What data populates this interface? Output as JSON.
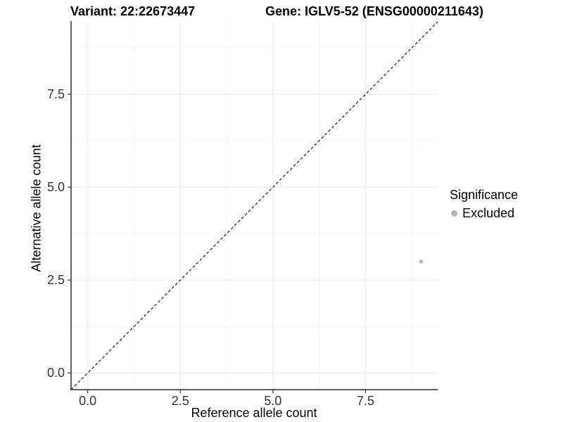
{
  "chart_data": {
    "type": "scatter",
    "title_variant": "Variant: 22:22673447",
    "title_gene": "Gene: IGLV5-52 (ENSG00000211643)",
    "xlabel": "Reference allele count",
    "ylabel": "Alternative allele count",
    "xlim": [
      -0.45,
      9.45
    ],
    "ylim": [
      -0.45,
      9.45
    ],
    "x_ticks": {
      "values": [
        0,
        2.5,
        5,
        7.5
      ],
      "labels": [
        "0.0",
        "2.5",
        "5.0",
        "7.5"
      ]
    },
    "y_ticks": {
      "values": [
        0,
        2.5,
        5,
        7.5
      ],
      "labels": [
        "0.0",
        "2.5",
        "5.0",
        "7.5"
      ]
    },
    "minor_ticks": [
      1.25,
      3.75,
      6.25,
      8.75
    ],
    "grid": true,
    "reference_line": {
      "type": "abline",
      "intercept": 0,
      "slope": 1,
      "style": "dashed"
    },
    "series": [
      {
        "name": "Excluded",
        "color": "#bdbdbd",
        "points": [
          {
            "x": 9,
            "y": 3
          }
        ]
      }
    ],
    "legend": {
      "title": "Significance",
      "position": "right",
      "entries": [
        {
          "label": "Excluded",
          "color": "#b3b3b3"
        }
      ]
    },
    "colors": {
      "background": "#ffffff",
      "major_grid": "#e7e7e7",
      "minor_grid": "#f4f4f4",
      "axis_line": "#2b2b2b",
      "tick_mark": "#333333",
      "tick_text": "#333333",
      "reference_line": "#1a1a1a"
    }
  }
}
